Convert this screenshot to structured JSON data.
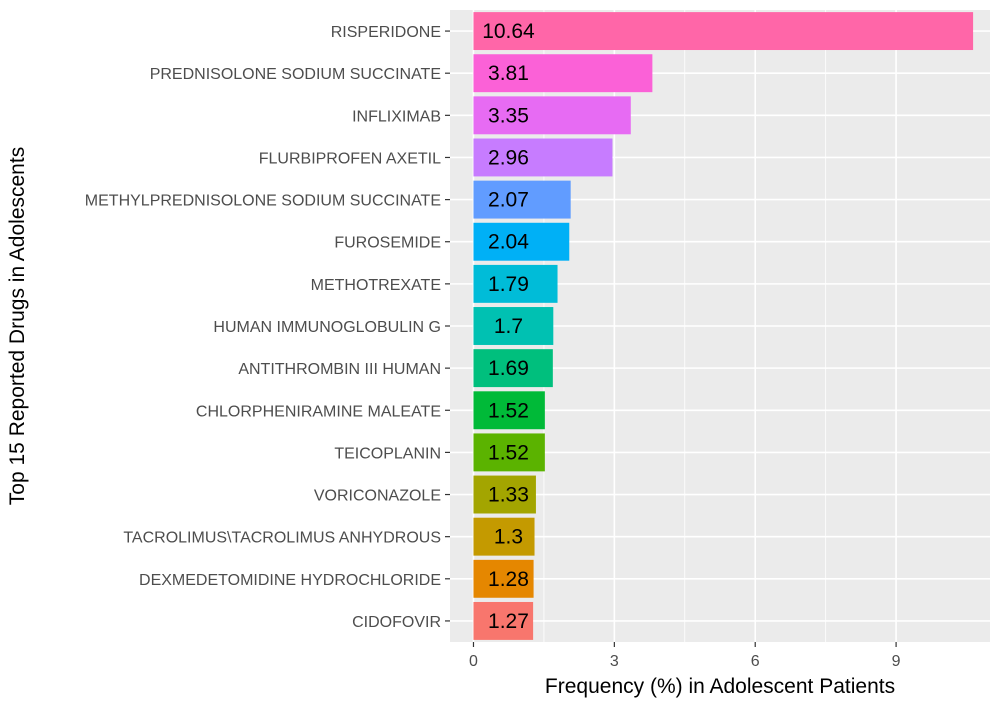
{
  "chart_data": {
    "type": "bar",
    "orientation": "horizontal",
    "xlabel": "Frequency (%) in Adolescent Patients",
    "ylabel": "Top 15 Reported Drugs in Adolescents",
    "xlim": [
      -0.5,
      11.0
    ],
    "xticks": [
      0,
      3,
      6,
      9
    ],
    "xtick_labels": [
      "0",
      "3",
      "6",
      "9"
    ],
    "grid": true,
    "legend": "none",
    "categories": [
      "RISPERIDONE",
      "PREDNISOLONE SODIUM SUCCINATE",
      "INFLIXIMAB",
      "FLURBIPROFEN AXETIL",
      "METHYLPREDNISOLONE SODIUM SUCCINATE",
      "FUROSEMIDE",
      "METHOTREXATE",
      "HUMAN IMMUNOGLOBULIN G",
      "ANTITHROMBIN III HUMAN",
      "CHLORPHENIRAMINE MALEATE",
      "TEICOPLANIN",
      "VORICONAZOLE",
      "TACROLIMUS\\TACROLIMUS ANHYDROUS",
      "DEXMEDETOMIDINE HYDROCHLORIDE",
      "CIDOFOVIR"
    ],
    "values": [
      10.64,
      3.81,
      3.35,
      2.96,
      2.07,
      2.04,
      1.79,
      1.7,
      1.69,
      1.52,
      1.52,
      1.33,
      1.3,
      1.28,
      1.27
    ],
    "value_labels": [
      "10.64",
      "3.81",
      "3.35",
      "2.96",
      "2.07",
      "2.04",
      "1.79",
      "1.7",
      "1.69",
      "1.52",
      "1.52",
      "1.33",
      "1.3",
      "1.28",
      "1.27"
    ],
    "colors": [
      "#FF66A8",
      "#FB61D7",
      "#E76BF3",
      "#C77CFF",
      "#619CFF",
      "#00B0F6",
      "#00BCD8",
      "#00C1B2",
      "#00BF7D",
      "#00BA38",
      "#5BB300",
      "#A3A500",
      "#C49A00",
      "#E58700",
      "#F8766D"
    ],
    "panel_background": "#EBEBEB",
    "grid_color": "#FFFFFF"
  }
}
